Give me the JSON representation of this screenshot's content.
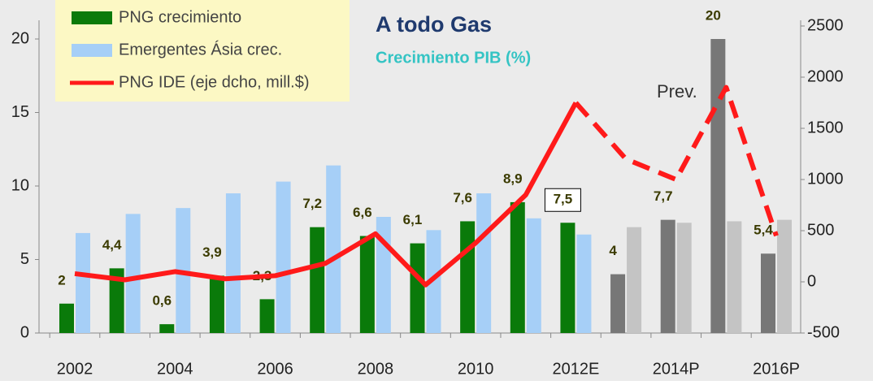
{
  "chart_data": {
    "type": "bar_line",
    "title": "A todo Gas",
    "subtitle": "Crecimiento PIB (%)",
    "annotations": [
      "Prev."
    ],
    "categories": [
      "2002",
      null,
      "2004",
      null,
      "2006",
      null,
      "2008",
      null,
      "2010",
      null,
      "2012E",
      null,
      "2014P",
      null,
      "2016P"
    ],
    "series": [
      {
        "name": "PNG crecimiento",
        "color": "#0a7a0a",
        "colors": [
          "#0a7a0a",
          "#0a7a0a",
          "#0a7a0a",
          "#0a7a0a",
          "#0a7a0a",
          "#0a7a0a",
          "#0a7a0a",
          "#0a7a0a",
          "#0a7a0a",
          "#0a7a0a",
          "#0a7a0a",
          "#777777",
          "#777777",
          "#777777",
          "#777777"
        ],
        "values": [
          2,
          4.4,
          0.6,
          3.9,
          2.3,
          7.2,
          6.6,
          6.1,
          7.6,
          8.9,
          7.5,
          4,
          7.7,
          20,
          5.4
        ],
        "value_labels": [
          "2",
          "4,4",
          "0,6",
          "3,9",
          "2,3",
          "7,2",
          "6,6",
          "6,1",
          "7,6",
          "8,9",
          "7,5",
          "4",
          "7,7",
          "20",
          "5,4"
        ]
      },
      {
        "name": "Emergentes Ásia crec.",
        "color": "#a6cff7",
        "colors": [
          "#a6cff7",
          "#a6cff7",
          "#a6cff7",
          "#a6cff7",
          "#a6cff7",
          "#a6cff7",
          "#a6cff7",
          "#a6cff7",
          "#a6cff7",
          "#a6cff7",
          "#a6cff7",
          "#c4c4c4",
          "#c4c4c4",
          "#c4c4c4",
          "#c4c4c4"
        ],
        "values": [
          6.8,
          8.1,
          8.5,
          9.5,
          10.3,
          11.4,
          7.9,
          7.0,
          9.5,
          7.8,
          6.7,
          7.2,
          7.5,
          7.6,
          7.7
        ]
      },
      {
        "name": "PNG IDE (eje dcho, mill.$)",
        "color": "#ff1a1a",
        "axis": "y2",
        "dash_from_index": 10,
        "values": [
          80,
          20,
          100,
          30,
          60,
          180,
          470,
          -30,
          380,
          850,
          1750,
          1200,
          1000,
          1900,
          450
        ]
      }
    ],
    "ylim": [
      0,
      20
    ],
    "yticks": [
      0,
      5,
      10,
      15,
      20
    ],
    "y2lim": [
      -500,
      2500
    ],
    "y2ticks": [
      -500,
      0,
      500,
      1000,
      1500,
      2000,
      2500
    ]
  }
}
